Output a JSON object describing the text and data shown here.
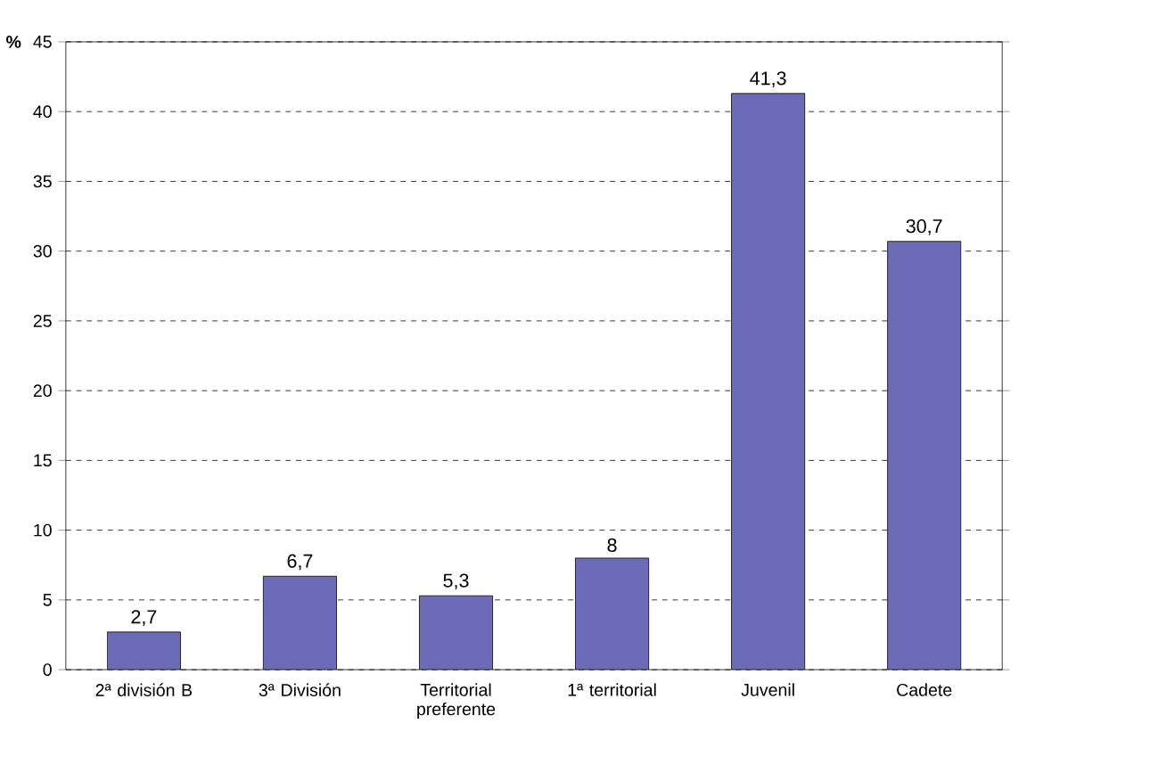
{
  "chart_data": {
    "type": "bar",
    "ylabel": "%",
    "categories": [
      "2ª división B",
      "3ª División",
      "Territorial preferente",
      "1ª territorial",
      "Juvenil",
      "Cadete"
    ],
    "values": [
      2.7,
      6.7,
      5.3,
      8,
      41.3,
      30.7
    ],
    "value_labels": [
      "2,7",
      "6,7",
      "5,3",
      "8",
      "41,3",
      "30,7"
    ],
    "color": "#6b6bb8",
    "ylim": [
      0,
      45
    ],
    "yticks": [
      0,
      5,
      10,
      15,
      20,
      25,
      30,
      35,
      40,
      45
    ],
    "grid": "y"
  }
}
